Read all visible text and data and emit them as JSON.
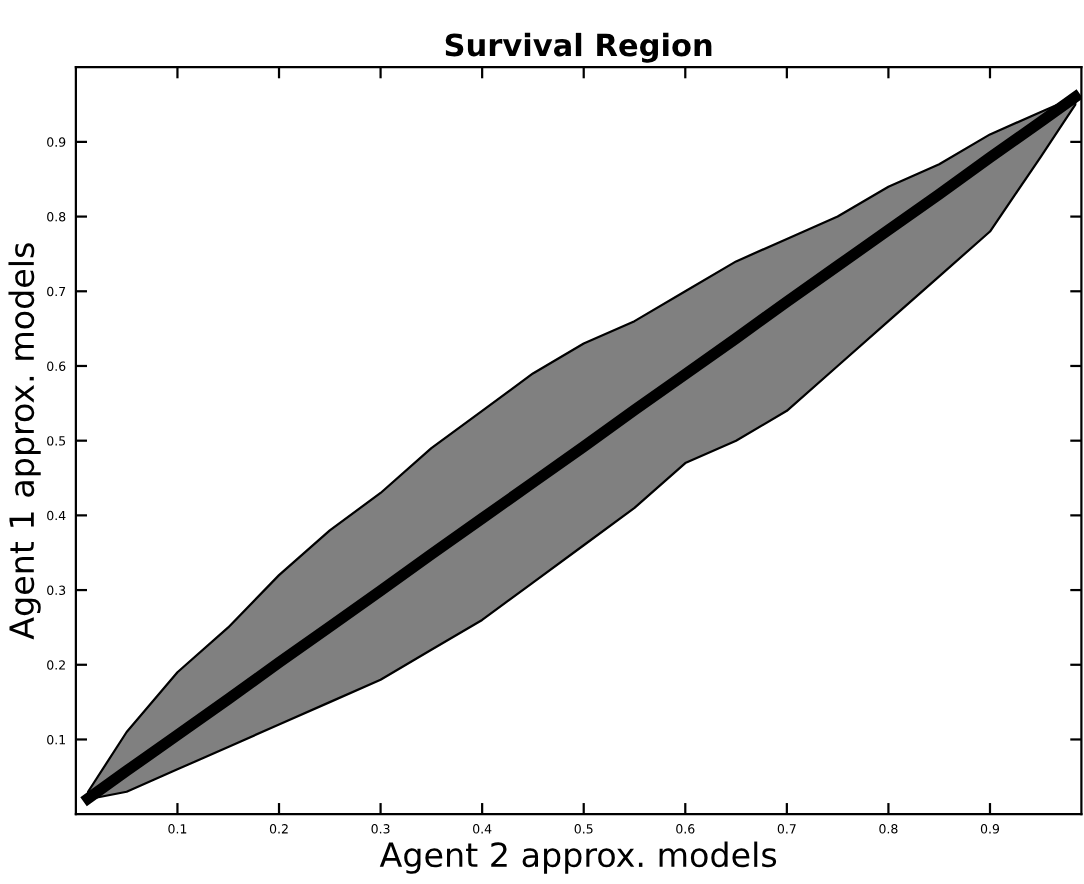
{
  "chart_data": {
    "type": "line",
    "title": "Survival Region",
    "xlabel": "Agent 2 approx. models",
    "ylabel": "Agent 1 approx. models",
    "xlim": [
      0,
      0.99
    ],
    "ylim": [
      0,
      1
    ],
    "xticks": [
      0.1,
      0.2,
      0.3,
      0.4,
      0.5,
      0.6,
      0.7,
      0.8,
      0.9
    ],
    "yticks": [
      0.1,
      0.2,
      0.3,
      0.4,
      0.5,
      0.6,
      0.7,
      0.8,
      0.9
    ],
    "grid": false,
    "marker": "none",
    "line_style": "solid",
    "series": [
      {
        "color": "#000000",
        "x": [
          0.012,
          0.05,
          0.1,
          0.15,
          0.2,
          0.25,
          0.3,
          0.35,
          0.4,
          0.45,
          0.5,
          0.55,
          0.6,
          0.65,
          0.7,
          0.75,
          0.8,
          0.85,
          0.9,
          0.95,
          0.984
        ],
        "values": [
          0.021,
          0.058,
          0.106,
          0.154,
          0.203,
          0.251,
          0.299,
          0.348,
          0.396,
          0.444,
          0.492,
          0.541,
          0.589,
          0.637,
          0.686,
          0.734,
          0.782,
          0.83,
          0.879,
          0.927,
          0.96
        ],
        "upper": [
          0.03,
          0.11,
          0.19,
          0.25,
          0.32,
          0.38,
          0.43,
          0.49,
          0.54,
          0.59,
          0.63,
          0.66,
          0.7,
          0.74,
          0.77,
          0.8,
          0.84,
          0.87,
          0.91,
          0.94,
          0.96
        ],
        "lower": [
          0.02,
          0.03,
          0.06,
          0.09,
          0.12,
          0.15,
          0.18,
          0.22,
          0.26,
          0.31,
          0.36,
          0.41,
          0.47,
          0.5,
          0.54,
          0.6,
          0.66,
          0.72,
          0.78,
          0.88,
          0.95
        ]
      }
    ]
  }
}
